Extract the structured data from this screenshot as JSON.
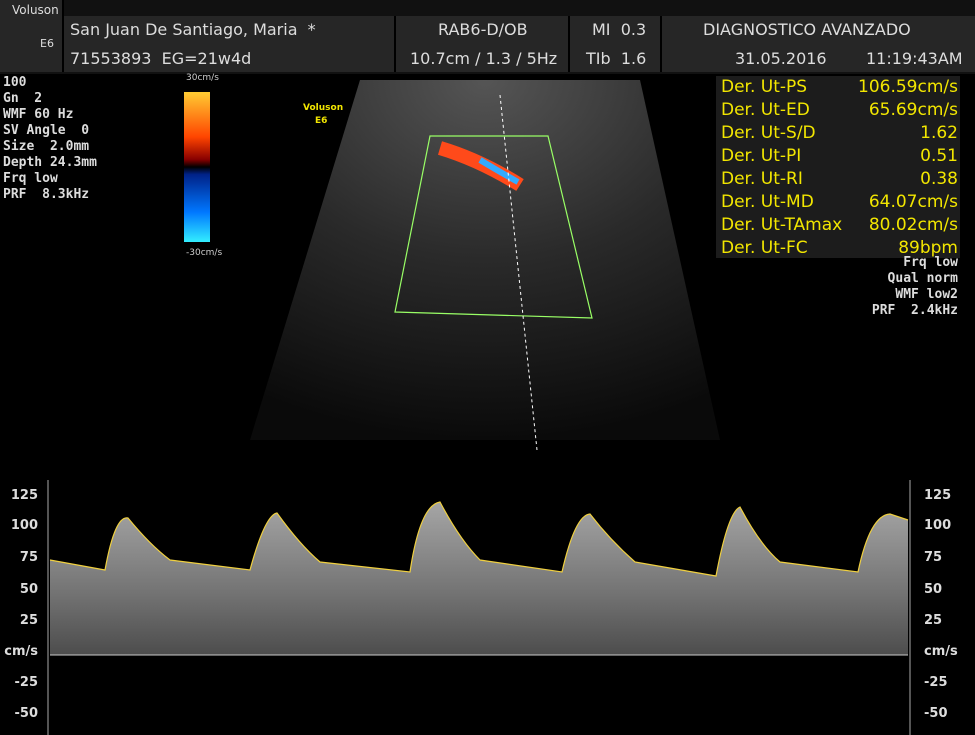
{
  "header": {
    "brand": "Voluson",
    "model": "E6",
    "patient": "San Juan De Santiago, Maria  *",
    "patient_id": "71553893  EG=21w4d",
    "probe": "RAB6-D/OB",
    "settings": "10.7cm / 1.3 / 5Hz",
    "mi": "MI  0.3",
    "tib": "TIb  1.6",
    "exam": "DIAGNOSTICO AVANZADO",
    "date": "31.05.2016",
    "time": "11:19:43AM"
  },
  "left_params": [
    "100",
    "Gn  2",
    "WMF 60 Hz",
    "SV Angle  0",
    "Size  2.0mm",
    "Depth 24.3mm",
    "Frq low",
    "PRF  8.3kHz"
  ],
  "color_scale": {
    "top": "30cm/s",
    "bottom": "-30cm/s"
  },
  "image_label": [
    "Voluson",
    "E6"
  ],
  "measurements": [
    [
      "Der. Ut-PS",
      "106.59cm/s"
    ],
    [
      "Der. Ut-ED",
      "65.69cm/s"
    ],
    [
      "Der. Ut-S/D",
      "1.62"
    ],
    [
      "Der. Ut-PI",
      "0.51"
    ],
    [
      "Der. Ut-RI",
      "0.38"
    ],
    [
      "Der. Ut-MD",
      "64.07cm/s"
    ],
    [
      "Der. Ut-TAmax",
      "80.02cm/s"
    ],
    [
      "Der. Ut-FC",
      "89bpm"
    ]
  ],
  "right_params": [
    "Frq low",
    "Qual norm",
    "WMF low2",
    "PRF  2.4kHz"
  ],
  "doppler_scale": [
    "125",
    "100",
    "75",
    "50",
    "25",
    "cm/s",
    "-25",
    "-50"
  ]
}
